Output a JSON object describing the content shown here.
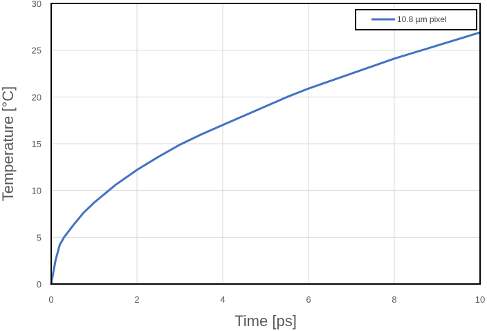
{
  "chart_data": {
    "type": "line",
    "title": "",
    "xlabel": "Time [ps]",
    "ylabel": "Temperature [°C]",
    "xlim": [
      0,
      10
    ],
    "ylim": [
      0,
      30
    ],
    "xticks": [
      0,
      2,
      4,
      6,
      8,
      10
    ],
    "yticks": [
      0,
      5,
      10,
      15,
      20,
      25,
      30
    ],
    "grid": true,
    "legend_position": "top-right",
    "series": [
      {
        "name": "10.8 µm pixel",
        "color": "#4472C4",
        "x": [
          0,
          0.1,
          0.2,
          0.3,
          0.5,
          0.75,
          1,
          1.5,
          2,
          2.5,
          3,
          3.5,
          4,
          4.5,
          5,
          5.5,
          6,
          6.5,
          7,
          7.5,
          8,
          8.5,
          9,
          9.5,
          10
        ],
        "y": [
          0,
          2.5,
          4.2,
          5.0,
          6.2,
          7.6,
          8.7,
          10.6,
          12.2,
          13.6,
          14.9,
          16.0,
          17.0,
          18.0,
          19.0,
          20.0,
          20.9,
          21.7,
          22.5,
          23.3,
          24.1,
          24.8,
          25.5,
          26.2,
          26.9
        ]
      }
    ]
  }
}
